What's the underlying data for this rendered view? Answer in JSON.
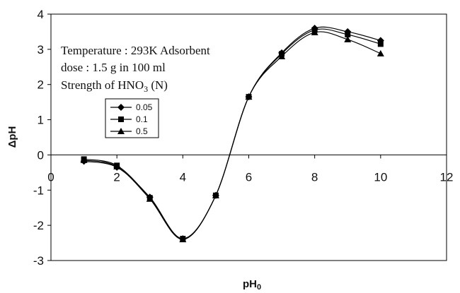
{
  "chart_data": {
    "type": "line",
    "xlabel": "pH",
    "xlabel_sub": "0",
    "ylabel": "ΔpH",
    "xlim": [
      0,
      12
    ],
    "ylim": [
      -3,
      4
    ],
    "xticks": [
      0,
      2,
      4,
      6,
      8,
      10,
      12
    ],
    "yticks": [
      -3,
      -2,
      -1,
      0,
      1,
      2,
      3,
      4
    ],
    "grid": false,
    "legend_placement": "upper-left",
    "annotation": {
      "line1": "Temperature : 293K Adsorbent",
      "line2": "dose : 1.5 g in 100 ml",
      "line3_prefix": "Strength of HNO",
      "line3_sub": "3",
      "line3_suffix": " (N)"
    },
    "series": [
      {
        "name": "0.05",
        "marker": "diamond",
        "x": [
          1,
          2,
          3,
          4,
          5,
          6,
          7,
          8,
          9,
          10
        ],
        "y": [
          -0.18,
          -0.35,
          -1.2,
          -2.38,
          -1.15,
          1.65,
          2.9,
          3.6,
          3.5,
          3.25
        ]
      },
      {
        "name": "0.1",
        "marker": "square",
        "x": [
          1,
          2,
          3,
          4,
          5,
          6,
          7,
          8,
          9,
          10
        ],
        "y": [
          -0.12,
          -0.3,
          -1.22,
          -2.38,
          -1.15,
          1.65,
          2.87,
          3.55,
          3.42,
          3.15
        ]
      },
      {
        "name": "0.5",
        "marker": "triangle",
        "x": [
          1,
          2,
          3,
          4,
          5,
          6,
          7,
          8,
          9,
          10
        ],
        "y": [
          -0.15,
          -0.33,
          -1.25,
          -2.4,
          -1.15,
          1.65,
          2.8,
          3.48,
          3.28,
          2.88
        ]
      }
    ]
  }
}
